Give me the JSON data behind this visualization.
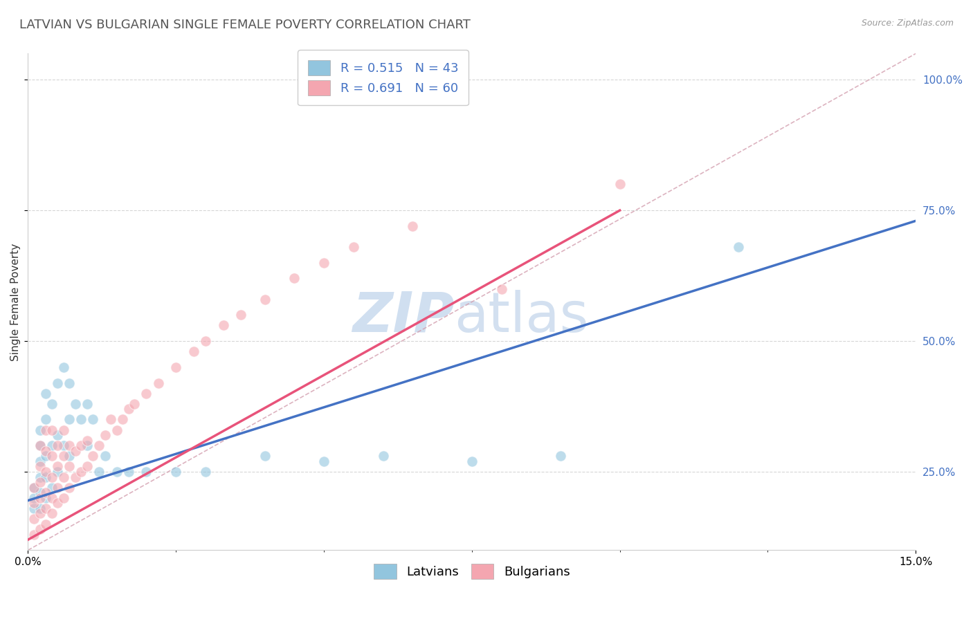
{
  "title": "LATVIAN VS BULGARIAN SINGLE FEMALE POVERTY CORRELATION CHART",
  "source_text": "Source: ZipAtlas.com",
  "ylabel": "Single Female Poverty",
  "xlim": [
    0.0,
    0.15
  ],
  "ylim": [
    0.1,
    1.05
  ],
  "latvian_color": "#92c5de",
  "bulgarian_color": "#f4a6b0",
  "trend_latvian_color": "#4472c4",
  "trend_bulgarian_color": "#e8537a",
  "diagonal_color": "#d0a0b0",
  "R_latvian": 0.515,
  "N_latvian": 43,
  "R_bulgarian": 0.691,
  "N_bulgarian": 60,
  "background_color": "#ffffff",
  "grid_color": "#cccccc",
  "title_fontsize": 13,
  "axis_label_fontsize": 11,
  "tick_fontsize": 11,
  "legend_fontsize": 13,
  "ytick_color": "#4472c4",
  "latvian_x": [
    0.001,
    0.001,
    0.001,
    0.002,
    0.002,
    0.002,
    0.002,
    0.002,
    0.002,
    0.003,
    0.003,
    0.003,
    0.003,
    0.003,
    0.004,
    0.004,
    0.004,
    0.005,
    0.005,
    0.005,
    0.006,
    0.006,
    0.007,
    0.007,
    0.007,
    0.008,
    0.009,
    0.01,
    0.01,
    0.011,
    0.012,
    0.013,
    0.015,
    0.017,
    0.02,
    0.025,
    0.03,
    0.04,
    0.05,
    0.06,
    0.075,
    0.09,
    0.12
  ],
  "latvian_y": [
    0.18,
    0.2,
    0.22,
    0.18,
    0.21,
    0.24,
    0.27,
    0.3,
    0.33,
    0.2,
    0.24,
    0.28,
    0.35,
    0.4,
    0.22,
    0.3,
    0.38,
    0.25,
    0.32,
    0.42,
    0.3,
    0.45,
    0.28,
    0.35,
    0.42,
    0.38,
    0.35,
    0.3,
    0.38,
    0.35,
    0.25,
    0.28,
    0.25,
    0.25,
    0.25,
    0.25,
    0.25,
    0.28,
    0.27,
    0.28,
    0.27,
    0.28,
    0.68
  ],
  "bulgarian_x": [
    0.001,
    0.001,
    0.001,
    0.001,
    0.002,
    0.002,
    0.002,
    0.002,
    0.002,
    0.002,
    0.003,
    0.003,
    0.003,
    0.003,
    0.003,
    0.003,
    0.004,
    0.004,
    0.004,
    0.004,
    0.004,
    0.005,
    0.005,
    0.005,
    0.005,
    0.006,
    0.006,
    0.006,
    0.006,
    0.007,
    0.007,
    0.007,
    0.008,
    0.008,
    0.009,
    0.009,
    0.01,
    0.01,
    0.011,
    0.012,
    0.013,
    0.014,
    0.015,
    0.016,
    0.017,
    0.018,
    0.02,
    0.022,
    0.025,
    0.028,
    0.03,
    0.033,
    0.036,
    0.04,
    0.045,
    0.05,
    0.055,
    0.065,
    0.08,
    0.1
  ],
  "bulgarian_y": [
    0.13,
    0.16,
    0.19,
    0.22,
    0.14,
    0.17,
    0.2,
    0.23,
    0.26,
    0.3,
    0.15,
    0.18,
    0.21,
    0.25,
    0.29,
    0.33,
    0.17,
    0.2,
    0.24,
    0.28,
    0.33,
    0.19,
    0.22,
    0.26,
    0.3,
    0.2,
    0.24,
    0.28,
    0.33,
    0.22,
    0.26,
    0.3,
    0.24,
    0.29,
    0.25,
    0.3,
    0.26,
    0.31,
    0.28,
    0.3,
    0.32,
    0.35,
    0.33,
    0.35,
    0.37,
    0.38,
    0.4,
    0.42,
    0.45,
    0.48,
    0.5,
    0.53,
    0.55,
    0.58,
    0.62,
    0.65,
    0.68,
    0.72,
    0.6,
    0.8
  ],
  "trend_lv_x0": 0.0,
  "trend_lv_y0": 0.195,
  "trend_lv_x1": 0.15,
  "trend_lv_y1": 0.73,
  "trend_bg_x0": 0.0,
  "trend_bg_y0": 0.12,
  "trend_bg_x1": 0.1,
  "trend_bg_y1": 0.75
}
